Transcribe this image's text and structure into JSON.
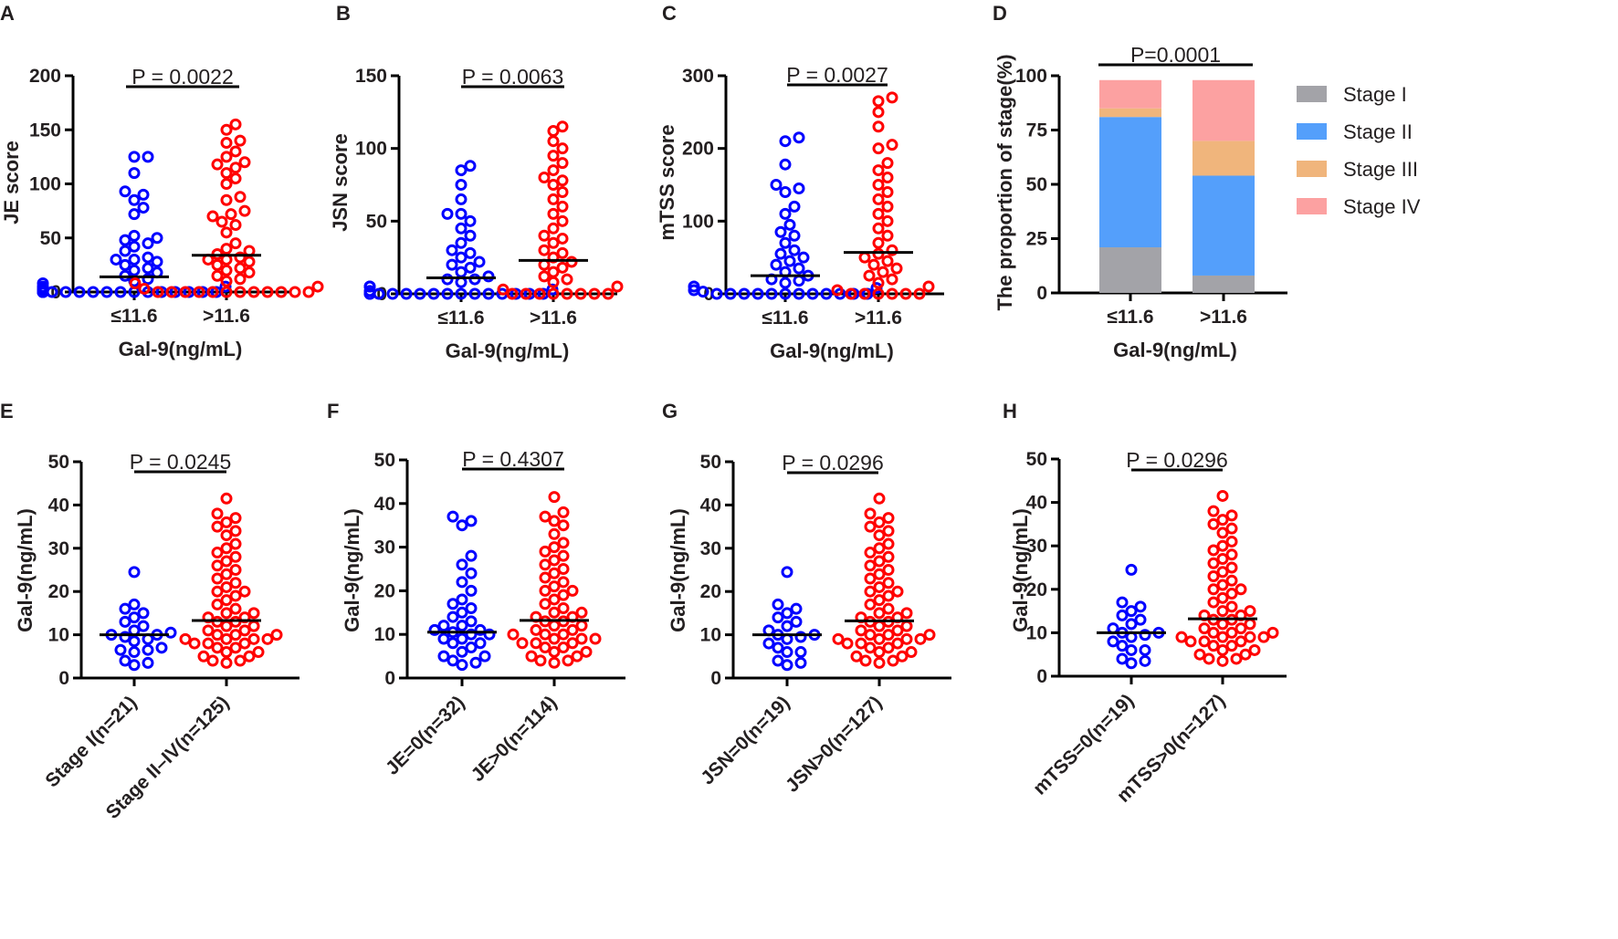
{
  "chart_data": [
    {
      "panel": "A",
      "type": "scatter",
      "title": "",
      "ylabel": "JE score",
      "xlabel": "Gal-9(ng/mL)",
      "ylim": [
        0,
        200
      ],
      "yticks": [
        0,
        50,
        100,
        150,
        200
      ],
      "categories": [
        "≤11.6",
        ">11.6"
      ],
      "p_value": "P = 0.0022",
      "series": [
        {
          "name": "≤11.6",
          "color": "#0000ff",
          "median": 14,
          "values": [
            0,
            0,
            0,
            0,
            0,
            0,
            0,
            0,
            0,
            0,
            0,
            0,
            0,
            0,
            0,
            0,
            0,
            0,
            0,
            0,
            2,
            3,
            5,
            5,
            8,
            10,
            12,
            15,
            18,
            20,
            22,
            25,
            28,
            30,
            30,
            32,
            38,
            42,
            45,
            48,
            50,
            52,
            72,
            78,
            85,
            90,
            93,
            110,
            125,
            125
          ]
        },
        {
          "name": ">11.6",
          "color": "#ff0000",
          "median": 34,
          "values": [
            0,
            0,
            0,
            0,
            0,
            0,
            0,
            0,
            0,
            0,
            0,
            0,
            3,
            5,
            8,
            10,
            12,
            15,
            18,
            20,
            22,
            25,
            28,
            30,
            30,
            32,
            35,
            38,
            40,
            45,
            55,
            62,
            65,
            70,
            72,
            75,
            85,
            88,
            100,
            105,
            110,
            115,
            118,
            120,
            125,
            130,
            138,
            140,
            150,
            155
          ]
        }
      ]
    },
    {
      "panel": "B",
      "type": "scatter",
      "ylabel": "JSN score",
      "xlabel": "Gal-9(ng/mL)",
      "ylim": [
        0,
        150
      ],
      "yticks": [
        0,
        50,
        100,
        150
      ],
      "categories": [
        "≤11.6",
        ">11.6"
      ],
      "p_value": "P = 0.0063",
      "series": [
        {
          "name": "≤11.6",
          "color": "#0000ff",
          "median": 11,
          "values": [
            0,
            0,
            0,
            0,
            0,
            0,
            0,
            0,
            0,
            0,
            0,
            0,
            0,
            0,
            0,
            2,
            3,
            5,
            5,
            8,
            10,
            10,
            12,
            15,
            18,
            20,
            22,
            25,
            28,
            30,
            35,
            40,
            45,
            50,
            55,
            55,
            65,
            75,
            85,
            88
          ]
        },
        {
          "name": ">11.6",
          "color": "#ff0000",
          "median": 23,
          "values": [
            0,
            0,
            0,
            0,
            0,
            0,
            0,
            0,
            3,
            5,
            8,
            10,
            12,
            15,
            18,
            20,
            22,
            25,
            28,
            30,
            35,
            38,
            40,
            45,
            50,
            55,
            60,
            65,
            70,
            75,
            78,
            80,
            85,
            90,
            95,
            100,
            105,
            112,
            115
          ]
        }
      ]
    },
    {
      "panel": "C",
      "type": "scatter",
      "ylabel": "mTSS score",
      "xlabel": "Gal-9(ng/mL)",
      "ylim": [
        0,
        300
      ],
      "yticks": [
        0,
        100,
        200,
        300
      ],
      "categories": [
        "≤11.6",
        ">11.6"
      ],
      "p_value": "P = 0.0027",
      "series": [
        {
          "name": "≤11.6",
          "color": "#0000ff",
          "median": 25,
          "values": [
            0,
            0,
            0,
            0,
            0,
            0,
            0,
            0,
            0,
            0,
            0,
            0,
            3,
            5,
            8,
            10,
            15,
            18,
            20,
            25,
            30,
            35,
            40,
            45,
            50,
            55,
            60,
            70,
            80,
            85,
            95,
            110,
            120,
            140,
            145,
            150,
            178,
            210,
            215
          ]
        },
        {
          "name": ">11.6",
          "color": "#ff0000",
          "median": 57,
          "values": [
            0,
            0,
            0,
            0,
            0,
            0,
            5,
            10,
            15,
            20,
            25,
            30,
            35,
            40,
            45,
            50,
            55,
            60,
            70,
            80,
            90,
            100,
            110,
            120,
            130,
            140,
            150,
            160,
            170,
            180,
            200,
            205,
            230,
            250,
            265,
            270
          ]
        }
      ]
    },
    {
      "panel": "D",
      "type": "bar",
      "stacked": true,
      "ylabel": "The proportion of stage(%)",
      "xlabel": "Gal-9(ng/mL)",
      "ylim": [
        0,
        100
      ],
      "yticks": [
        0,
        25,
        50,
        75,
        100
      ],
      "categories": [
        "≤11.6",
        ">11.6"
      ],
      "p_value": "P=0.0001",
      "legend_position": "right",
      "series": [
        {
          "name": "Stage I",
          "color": "#a3a3a8",
          "values": [
            21,
            8
          ]
        },
        {
          "name": "Stage II",
          "color": "#549ffb",
          "values": [
            60,
            46
          ]
        },
        {
          "name": "Stage III",
          "color": "#f0b57c",
          "values": [
            4,
            16
          ]
        },
        {
          "name": "Stage IV",
          "color": "#fca1a1",
          "values": [
            13,
            28
          ]
        }
      ]
    },
    {
      "panel": "E",
      "type": "scatter",
      "ylabel": "Gal-9(ng/mL)",
      "xlabel": "",
      "ylim": [
        0,
        50
      ],
      "yticks": [
        0,
        10,
        20,
        30,
        40,
        50
      ],
      "categories": [
        "Stage I(n=21)",
        "Stage II–IV(n=125)"
      ],
      "p_value": "P = 0.0245",
      "series": [
        {
          "name": "Stage I(n=21)",
          "color": "#0000ff",
          "median": 10,
          "values": [
            24.5,
            17,
            16,
            15,
            14,
            13,
            12,
            11,
            10.5,
            10,
            10,
            9.5,
            9,
            8.5,
            7,
            6.5,
            6.5,
            6,
            4,
            3.5,
            3
          ]
        },
        {
          "name": "Stage II–IV(n=125)",
          "color": "#ff0000",
          "median": 13.3,
          "values": [
            41.5,
            38,
            37,
            36,
            35,
            34,
            33,
            31,
            30,
            29,
            28,
            27,
            26,
            25,
            24,
            23,
            22,
            21,
            20,
            20,
            19,
            18,
            17,
            16,
            15,
            15,
            14,
            14,
            13,
            13,
            12,
            12,
            11,
            11,
            10,
            10,
            10,
            9,
            9,
            9,
            9,
            8,
            8,
            8,
            7,
            7,
            6,
            6,
            5,
            5,
            4,
            4,
            3.5
          ]
        }
      ]
    },
    {
      "panel": "F",
      "type": "scatter",
      "ylabel": "Gal-9(ng/mL)",
      "xlabel": "",
      "ylim": [
        0,
        50
      ],
      "yticks": [
        0,
        10,
        20,
        30,
        40,
        50
      ],
      "categories": [
        "JE=0(n=32)",
        "JE>0(n=114)"
      ],
      "p_value": "P = 0.4307",
      "series": [
        {
          "name": "JE=0(n=32)",
          "color": "#0000ff",
          "median": 10.5,
          "values": [
            37,
            36,
            35,
            28,
            26,
            24,
            22,
            20,
            18,
            17,
            16,
            15,
            14,
            13,
            12,
            12,
            11,
            11,
            10.5,
            10,
            10,
            9,
            9,
            8,
            8,
            7,
            6,
            5,
            5,
            4,
            3.5,
            3
          ]
        },
        {
          "name": "JE>0(n=114)",
          "color": "#ff0000",
          "median": 13.2,
          "values": [
            41.5,
            38,
            37,
            36,
            35,
            33,
            31,
            30,
            29,
            28,
            27,
            26,
            25,
            24,
            23,
            22,
            21,
            20,
            20,
            19,
            18,
            17,
            16,
            15,
            15,
            14,
            14,
            13,
            13,
            12,
            12,
            11,
            11,
            10,
            10,
            10,
            9,
            9,
            9,
            8,
            8,
            8,
            7,
            7,
            6,
            6,
            5,
            5,
            4,
            4,
            3.5
          ]
        }
      ]
    },
    {
      "panel": "G",
      "type": "scatter",
      "ylabel": "Gal-9(ng/mL)",
      "xlabel": "",
      "ylim": [
        0,
        50
      ],
      "yticks": [
        0,
        10,
        20,
        30,
        40,
        50
      ],
      "categories": [
        "JSN=0(n=19)",
        "JSN>0(n=127)"
      ],
      "p_value": "P = 0.0296",
      "series": [
        {
          "name": "JSN=0(n=19)",
          "color": "#0000ff",
          "median": 10,
          "values": [
            24.5,
            17,
            16,
            15,
            14,
            13,
            12,
            11,
            10,
            10,
            9.5,
            9,
            8,
            7,
            6,
            6,
            4,
            3.5,
            3
          ]
        },
        {
          "name": "JSN>0(n=127)",
          "color": "#ff0000",
          "median": 13.2,
          "values": [
            41.5,
            38,
            37,
            36,
            35,
            34,
            33,
            31,
            30,
            29,
            28,
            27,
            26,
            25,
            24,
            23,
            22,
            21,
            20,
            20,
            19,
            18,
            17,
            16,
            15,
            15,
            14,
            14,
            13,
            13,
            12,
            12,
            11,
            11,
            10,
            10,
            10,
            9,
            9,
            9,
            9,
            8,
            8,
            8,
            7,
            7,
            6,
            6,
            5,
            5,
            4,
            4,
            3.5
          ]
        }
      ]
    },
    {
      "panel": "H",
      "type": "scatter",
      "ylabel": "Gal-9(ng/mL)",
      "xlabel": "",
      "ylim": [
        0,
        50
      ],
      "yticks": [
        0,
        10,
        20,
        30,
        40,
        50
      ],
      "categories": [
        "mTSS=0(n=19)",
        "mTSS>0(n=127)"
      ],
      "p_value": "P = 0.0296",
      "series": [
        {
          "name": "mTSS=0(n=19)",
          "color": "#0000ff",
          "median": 10,
          "values": [
            24.5,
            17,
            16,
            15,
            14,
            13,
            12,
            11,
            10,
            10,
            9.5,
            9,
            8,
            7,
            6,
            6,
            4,
            3.5,
            3
          ]
        },
        {
          "name": "mTSS>0(n=127)",
          "color": "#ff0000",
          "median": 13.2,
          "values": [
            41.5,
            38,
            37,
            36,
            35,
            34,
            33,
            31,
            30,
            29,
            28,
            27,
            26,
            25,
            24,
            23,
            22,
            21,
            20,
            20,
            19,
            18,
            17,
            16,
            15,
            15,
            14,
            14,
            13,
            13,
            12,
            12,
            11,
            11,
            10,
            10,
            10,
            9,
            9,
            9,
            9,
            8,
            8,
            8,
            7,
            7,
            6,
            6,
            5,
            5,
            4,
            4,
            3.5
          ]
        }
      ]
    }
  ]
}
